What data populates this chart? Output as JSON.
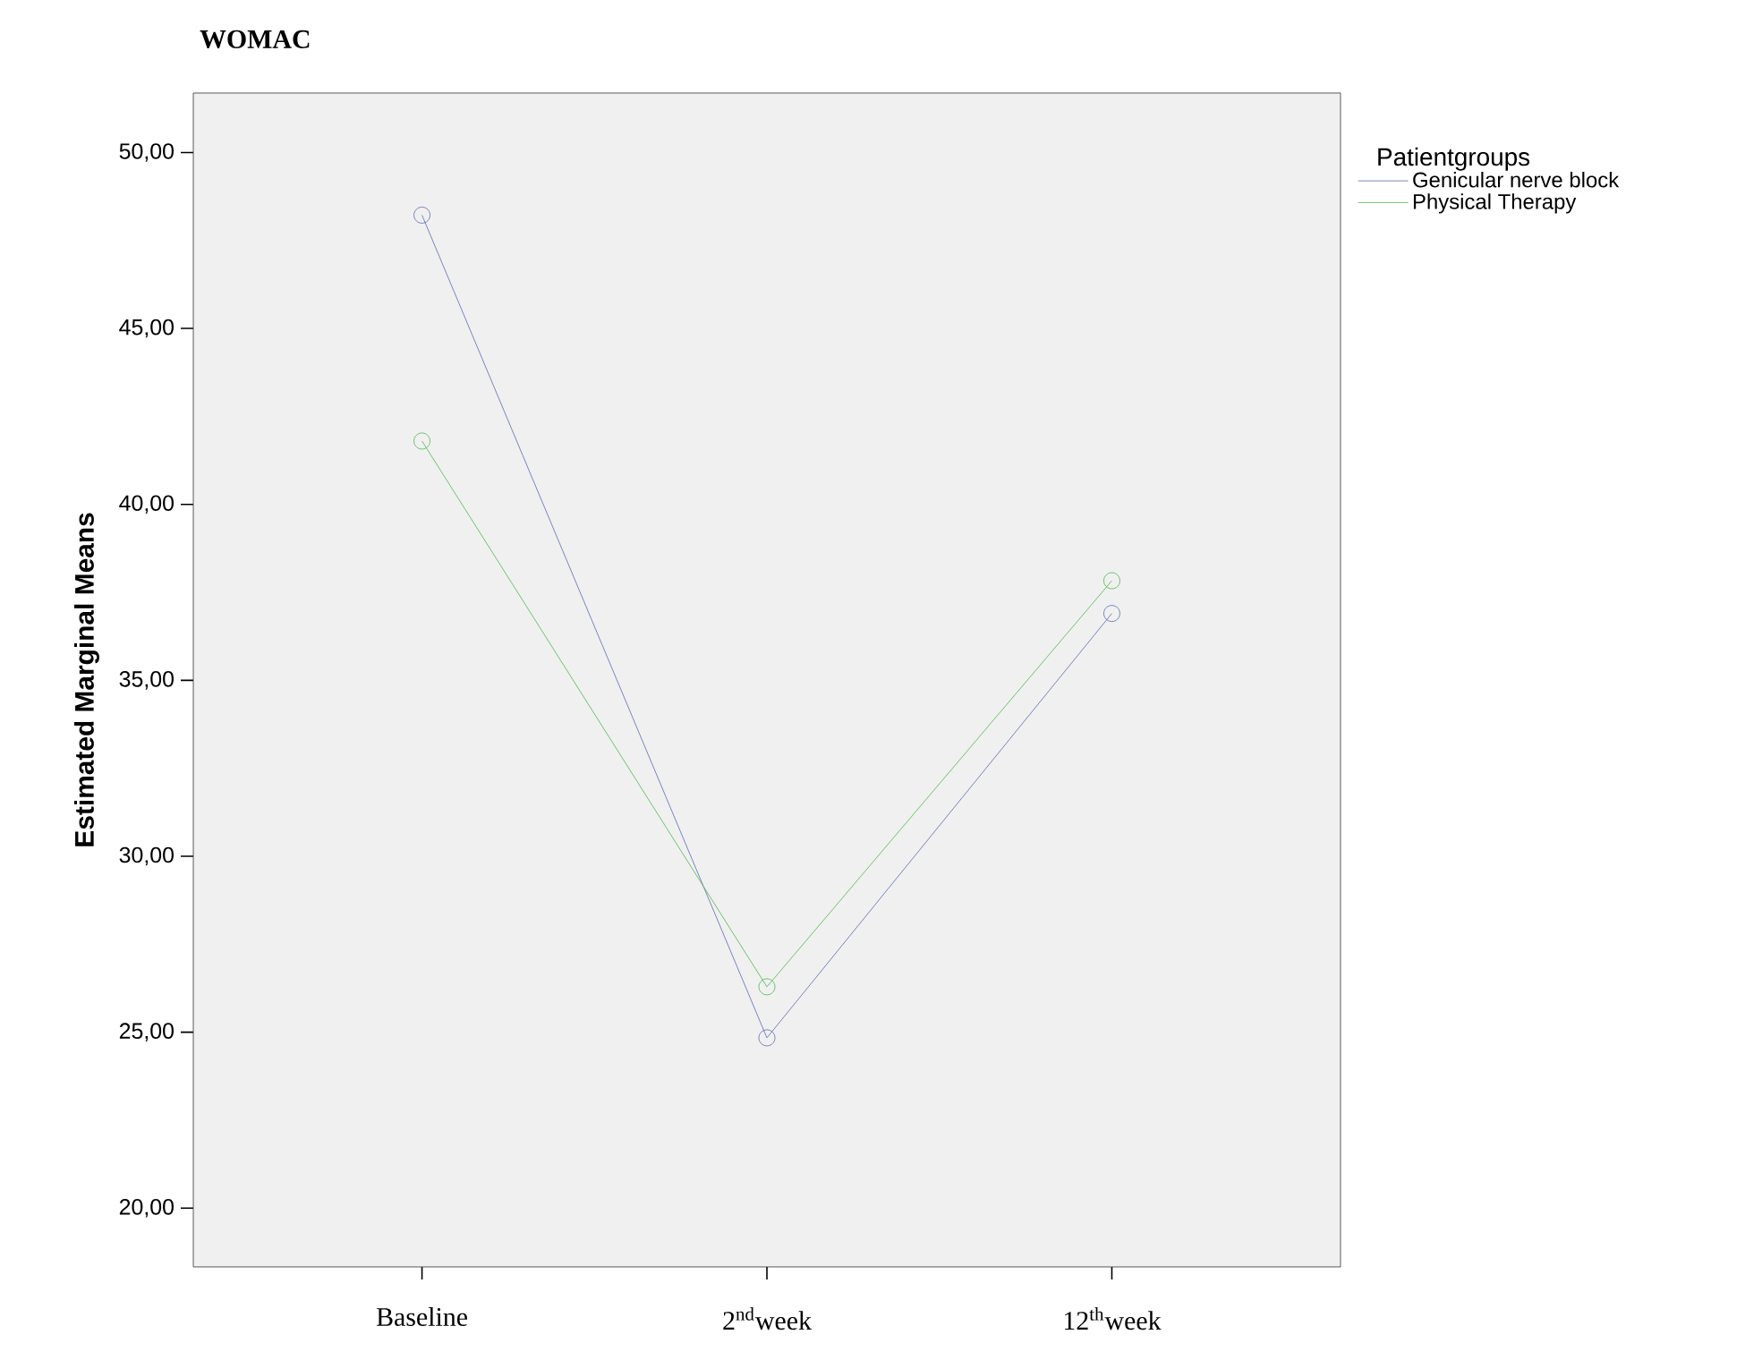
{
  "chart_data": {
    "type": "line",
    "title": "**WOMAC**",
    "ylabel": "Estimated Marginal Means",
    "legend_title": "Patientgroups",
    "categories": [
      "Baseline",
      "2$^{nd}$week",
      "12$^{th}$week"
    ],
    "series": [
      {
        "name": "Genicular nerve block",
        "color": "#5a68b0",
        "values": [
          48.22,
          24.84,
          36.9
        ]
      },
      {
        "name": "Physical Therapy",
        "color": "#4cb84c",
        "values": [
          41.8,
          26.29,
          37.83
        ]
      }
    ],
    "ylim": [
      18.33,
      51.69
    ],
    "yticks": [
      {
        "value": 20,
        "label": "20,00"
      },
      {
        "value": 25,
        "label": "25,00"
      },
      {
        "value": 30,
        "label": "30,00"
      },
      {
        "value": 35,
        "label": "35,00"
      },
      {
        "value": 40,
        "label": "40,00"
      },
      {
        "value": 45,
        "label": "45,00"
      },
      {
        "value": 50,
        "label": "50,00"
      }
    ],
    "grid": false,
    "legend": "right",
    "marker": "circle",
    "line_style": "solid"
  }
}
